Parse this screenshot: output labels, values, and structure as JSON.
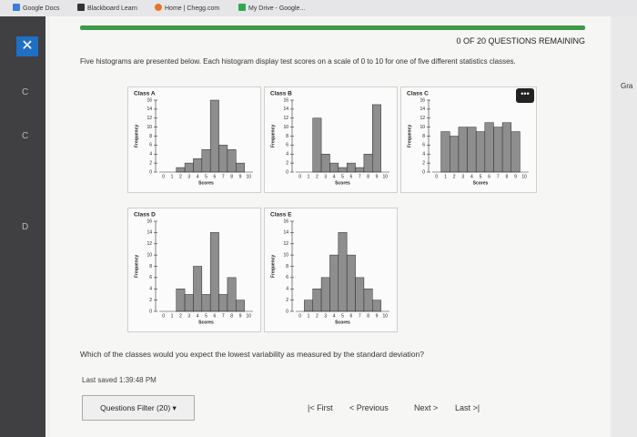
{
  "bookmarks": [
    "Google Docs",
    "Blackboard Learn",
    "Home | Chegg.com",
    "My Drive - Google..."
  ],
  "sidebar": {
    "letters": [
      "C",
      "C",
      "D"
    ]
  },
  "right_panel": {
    "text": "Gra"
  },
  "header": {
    "remaining": "0 OF 20 QUESTIONS REMAINING"
  },
  "question": {
    "intro": "Five histograms are presented below. Each histogram display test scores on a scale of 0 to 10 for one of five different statistics classes.",
    "prompt": "Which of the classes would you expect the lowest variability as measured by the standard deviation?"
  },
  "histograms": [
    {
      "type": "bar",
      "title": "Class A",
      "xlabel": "Scores",
      "ylabel": "Frequency",
      "categories": [
        0,
        1,
        2,
        3,
        4,
        5,
        6,
        7,
        8,
        9,
        10
      ],
      "values": [
        0,
        0,
        1,
        2,
        3,
        5,
        16,
        6,
        5,
        2,
        0
      ],
      "ylim": [
        0,
        16
      ],
      "yticks": [
        0,
        2,
        4,
        6,
        8,
        10,
        12,
        14,
        16
      ]
    },
    {
      "type": "bar",
      "title": "Class B",
      "xlabel": "Scores",
      "ylabel": "Frequency",
      "categories": [
        0,
        1,
        2,
        3,
        4,
        5,
        6,
        7,
        8,
        9,
        10
      ],
      "values": [
        0,
        0,
        12,
        4,
        2,
        1,
        2,
        1,
        4,
        15,
        0
      ],
      "ylim": [
        0,
        16
      ],
      "yticks": [
        0,
        2,
        4,
        6,
        8,
        10,
        12,
        14,
        16
      ]
    },
    {
      "type": "bar",
      "title": "Class C",
      "xlabel": "Scores",
      "ylabel": "Frequency",
      "categories": [
        0,
        1,
        2,
        3,
        4,
        5,
        6,
        7,
        8,
        9,
        10
      ],
      "values": [
        0,
        9,
        8,
        10,
        10,
        9,
        11,
        10,
        11,
        9,
        0
      ],
      "ylim": [
        0,
        16
      ],
      "yticks": [
        0,
        2,
        4,
        6,
        8,
        10,
        12,
        14,
        16
      ]
    },
    {
      "type": "bar",
      "title": "Class D",
      "xlabel": "Scores",
      "ylabel": "Frequency",
      "categories": [
        0,
        1,
        2,
        3,
        4,
        5,
        6,
        7,
        8,
        9,
        10
      ],
      "values": [
        0,
        0,
        4,
        3,
        8,
        3,
        14,
        3,
        6,
        2,
        0
      ],
      "ylim": [
        0,
        16
      ],
      "yticks": [
        0,
        2,
        4,
        6,
        8,
        10,
        12,
        14,
        16
      ]
    },
    {
      "type": "bar",
      "title": "Class E",
      "xlabel": "Scores",
      "ylabel": "Frequency",
      "categories": [
        0,
        1,
        2,
        3,
        4,
        5,
        6,
        7,
        8,
        9,
        10
      ],
      "values": [
        0,
        2,
        4,
        6,
        10,
        14,
        10,
        6,
        4,
        2,
        0
      ],
      "ylim": [
        0,
        16
      ],
      "yticks": [
        0,
        2,
        4,
        6,
        8,
        10,
        12,
        14,
        16
      ]
    }
  ],
  "footer": {
    "saved": "Last saved 1:39:48 PM",
    "filter": "Questions Filter (20)",
    "first": "First",
    "previous": "Previous",
    "next": "Next",
    "last": "Last"
  }
}
